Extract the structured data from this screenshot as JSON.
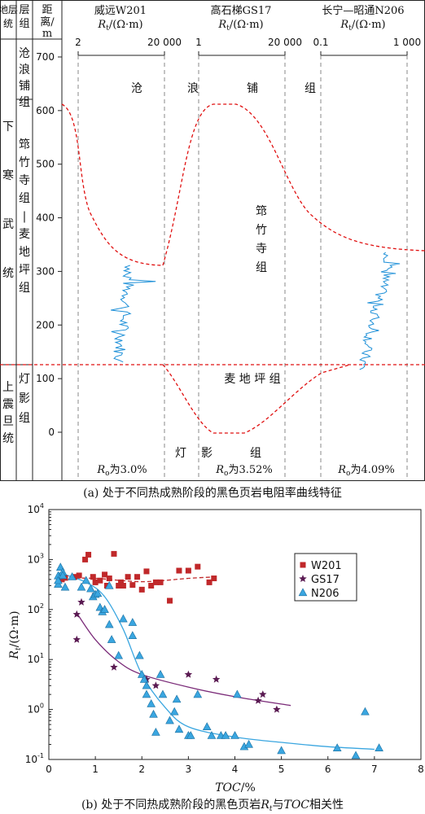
{
  "panel_a": {
    "caption": "(a) 处于不同热成熟阶段的黑色页岩电阻率曲线特征",
    "header": {
      "col_system": "地层统",
      "col_formation": "层组",
      "col_depth_lines": [
        "距",
        "离/",
        "m"
      ]
    },
    "systems": [
      {
        "label": "下寒武统"
      },
      {
        "label": "上震旦统"
      }
    ],
    "formations": [
      {
        "label": "沧浪铺组"
      },
      {
        "label": "筇竹寺组—麦地坪组"
      },
      {
        "label": "灯影组"
      }
    ],
    "depth_axis": {
      "ticks": [
        "700",
        "600",
        "500",
        "400",
        "300",
        "200",
        "100",
        "0"
      ]
    },
    "wells": [
      {
        "name": "威远W201",
        "unit": "Rt/(Ω·m)",
        "range_min": "2",
        "range_max": "20 000",
        "ro_label": "Ro为3.0%"
      },
      {
        "name": "高石梯GS17",
        "unit": "Rt/(Ω·m)",
        "range_min": "1",
        "range_max": "20 000",
        "ro_label": "Ro为3.52%"
      },
      {
        "name": "长宁—昭通N206",
        "unit": "Rt/(Ω·m)",
        "range_min": "0.1",
        "range_max": "1 000",
        "ro_label": "Ro为4.09%"
      }
    ],
    "inline_labels": {
      "canglang": [
        "沧",
        "浪",
        "铺",
        "组"
      ],
      "qiongzhusi": [
        "筇",
        "竹",
        "寺",
        "组"
      ],
      "maidiping": "麦 地 坪 组",
      "dengying_1": "灯",
      "dengying_2": "影",
      "dengying_3": "组"
    },
    "colors": {
      "log_curve": "#1e90d8",
      "boundary": "#e01010"
    }
  },
  "chart_data": {
    "type": "scatter",
    "caption": "(b) 处于不同热成熟阶段的黑色页岩Rt与TOC相关性",
    "xlabel": "TOC/%",
    "ylabel": "Rt/(Ω·m)",
    "xlim": [
      0,
      8
    ],
    "ylim": [
      0.1,
      10000
    ],
    "y_scale": "log",
    "x_ticks": [
      "0",
      "1",
      "2",
      "3",
      "4",
      "5",
      "6",
      "7",
      "8"
    ],
    "y_ticks": [
      "10^-1",
      "10^0",
      "10^1",
      "10^2",
      "10^3",
      "10^4"
    ],
    "legend_position": "top-right",
    "series": [
      {
        "name": "W201",
        "marker": "square",
        "color": "#c0282a",
        "points": [
          [
            0.28,
            400
          ],
          [
            0.35,
            430
          ],
          [
            0.55,
            450
          ],
          [
            0.65,
            480
          ],
          [
            0.78,
            1000
          ],
          [
            0.85,
            1250
          ],
          [
            0.95,
            450
          ],
          [
            1.0,
            350
          ],
          [
            1.1,
            380
          ],
          [
            1.2,
            500
          ],
          [
            1.25,
            300
          ],
          [
            1.3,
            420
          ],
          [
            1.4,
            1300
          ],
          [
            1.5,
            300
          ],
          [
            1.55,
            350
          ],
          [
            1.6,
            300
          ],
          [
            1.7,
            450
          ],
          [
            1.8,
            310
          ],
          [
            1.9,
            450
          ],
          [
            2.0,
            250
          ],
          [
            2.1,
            580
          ],
          [
            2.2,
            300
          ],
          [
            2.3,
            350
          ],
          [
            2.4,
            350
          ],
          [
            2.6,
            150
          ],
          [
            2.8,
            600
          ],
          [
            3.0,
            600
          ],
          [
            3.2,
            720
          ],
          [
            3.45,
            350
          ],
          [
            3.55,
            420
          ]
        ]
      },
      {
        "name": "GS17",
        "marker": "star",
        "color": "#5a1a52",
        "points": [
          [
            0.6,
            80
          ],
          [
            0.6,
            25
          ],
          [
            0.7,
            140
          ],
          [
            1.0,
            200
          ],
          [
            1.4,
            7
          ],
          [
            2.1,
            4
          ],
          [
            2.3,
            3
          ],
          [
            3.0,
            5
          ],
          [
            3.6,
            4
          ],
          [
            4.5,
            1.5
          ],
          [
            4.6,
            2
          ],
          [
            4.9,
            1
          ]
        ]
      },
      {
        "name": "N206",
        "marker": "triangle",
        "color": "#3aa6e0",
        "points": [
          [
            0.2,
            470
          ],
          [
            0.2,
            320
          ],
          [
            0.2,
            380
          ],
          [
            0.25,
            700
          ],
          [
            0.3,
            560
          ],
          [
            0.3,
            480
          ],
          [
            0.35,
            280
          ],
          [
            0.5,
            450
          ],
          [
            0.7,
            280
          ],
          [
            0.8,
            380
          ],
          [
            0.9,
            260
          ],
          [
            0.95,
            180
          ],
          [
            1.0,
            200
          ],
          [
            1.05,
            210
          ],
          [
            1.1,
            110
          ],
          [
            1.15,
            90
          ],
          [
            1.2,
            100
          ],
          [
            1.3,
            300
          ],
          [
            1.3,
            50
          ],
          [
            1.35,
            25
          ],
          [
            1.5,
            12
          ],
          [
            1.6,
            65
          ],
          [
            1.8,
            55
          ],
          [
            1.8,
            30
          ],
          [
            1.95,
            12
          ],
          [
            2.0,
            5
          ],
          [
            2.05,
            4
          ],
          [
            2.1,
            2
          ],
          [
            2.1,
            3
          ],
          [
            2.2,
            1.3
          ],
          [
            2.25,
            0.8
          ],
          [
            2.3,
            0.35
          ],
          [
            2.4,
            5
          ],
          [
            2.45,
            2
          ],
          [
            2.6,
            0.6
          ],
          [
            2.7,
            0.9
          ],
          [
            2.75,
            1.6
          ],
          [
            2.8,
            0.4
          ],
          [
            3.0,
            0.3
          ],
          [
            3.05,
            0.3
          ],
          [
            3.2,
            2
          ],
          [
            3.4,
            0.45
          ],
          [
            3.5,
            0.3
          ],
          [
            3.7,
            0.3
          ],
          [
            3.8,
            0.3
          ],
          [
            4.0,
            0.3
          ],
          [
            4.05,
            2
          ],
          [
            4.2,
            0.18
          ],
          [
            4.3,
            0.2
          ],
          [
            5.0,
            0.15
          ],
          [
            6.2,
            0.17
          ],
          [
            6.6,
            0.12
          ],
          [
            6.8,
            0.9
          ],
          [
            7.1,
            0.17
          ]
        ]
      }
    ],
    "trend_lines": [
      {
        "series": "W201",
        "style": "dashed",
        "color": "#c0282a",
        "points": [
          [
            0.3,
            420
          ],
          [
            1.0,
            420
          ],
          [
            2.0,
            360
          ],
          [
            3.0,
            420
          ],
          [
            3.6,
            450
          ]
        ]
      },
      {
        "series": "GS17",
        "style": "solid",
        "color": "#7a2a78",
        "points": [
          [
            0.6,
            85
          ],
          [
            1.0,
            25
          ],
          [
            1.5,
            9
          ],
          [
            2.0,
            5
          ],
          [
            3.0,
            2.8
          ],
          [
            4.0,
            1.8
          ],
          [
            5.2,
            1.2
          ]
        ]
      },
      {
        "series": "N206",
        "style": "solid",
        "color": "#3aa6e0",
        "points": [
          [
            0.2,
            550
          ],
          [
            0.8,
            350
          ],
          [
            1.2,
            180
          ],
          [
            1.6,
            40
          ],
          [
            2.0,
            5
          ],
          [
            2.5,
            1.1
          ],
          [
            3.0,
            0.45
          ],
          [
            4.0,
            0.28
          ],
          [
            5.0,
            0.22
          ],
          [
            6.0,
            0.18
          ],
          [
            7.0,
            0.16
          ]
        ]
      }
    ]
  }
}
